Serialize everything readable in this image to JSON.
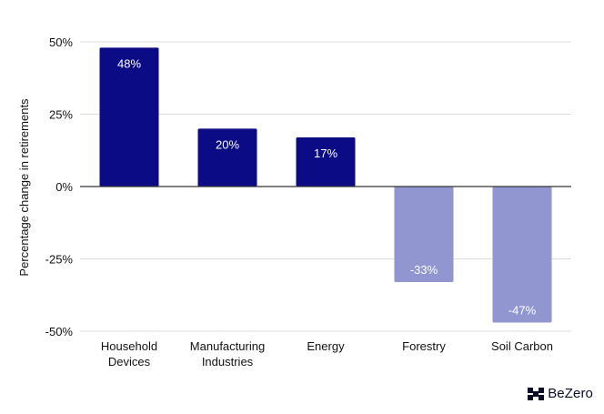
{
  "chart_data": {
    "type": "bar",
    "categories": [
      [
        "Household",
        "Devices"
      ],
      [
        "Manufacturing",
        "Industries"
      ],
      [
        "Energy"
      ],
      [
        "Forestry"
      ],
      [
        "Soil Carbon"
      ]
    ],
    "values": [
      48,
      20,
      17,
      -33,
      -47
    ],
    "data_labels": [
      "48%",
      "20%",
      "17%",
      "-33%",
      "-47%"
    ],
    "bar_colors": [
      "#0b0b86",
      "#0b0b86",
      "#0b0b86",
      "#9196d0",
      "#9196d0"
    ],
    "ylabel": "Percentage change in retirements",
    "ylim": [
      -50,
      50
    ],
    "yticks": [
      50,
      25,
      0,
      -25,
      -50
    ],
    "ytick_labels": [
      "50%",
      "25%",
      "0%",
      "-25%",
      "-50%"
    ],
    "grid": true
  },
  "brand": {
    "name": "BeZero",
    "icon": "bezero-logo-icon"
  }
}
